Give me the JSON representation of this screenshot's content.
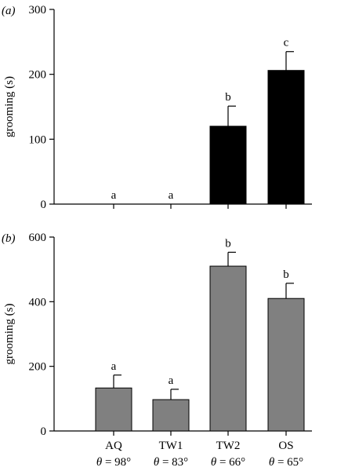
{
  "chart_data": [
    {
      "type": "bar",
      "panel_label": "(a)",
      "ylabel": "grooming (s)",
      "ylim": [
        0,
        300
      ],
      "yticks": [
        0,
        100,
        200,
        300
      ],
      "categories": [
        "AQ",
        "TW1",
        "TW2",
        "OS"
      ],
      "values": [
        0,
        0,
        120,
        206
      ],
      "errors": [
        0,
        0,
        31,
        29
      ],
      "significance": [
        "a",
        "a",
        "b",
        "c"
      ],
      "bar_color": "#000000",
      "show_category_labels": false
    },
    {
      "type": "bar",
      "panel_label": "(b)",
      "ylabel": "grooming (s)",
      "ylim": [
        0,
        600
      ],
      "yticks": [
        0,
        200,
        400,
        600
      ],
      "categories": [
        "AQ",
        "TW1",
        "TW2",
        "OS"
      ],
      "theta_labels": [
        "98°",
        "83°",
        "66°",
        "65°"
      ],
      "values": [
        133,
        97,
        510,
        410
      ],
      "errors": [
        40,
        32,
        43,
        47
      ],
      "significance": [
        "a",
        "a",
        "b",
        "b"
      ],
      "bar_color": "#808080",
      "show_category_labels": true
    }
  ],
  "theta_symbol": "θ",
  "theta_equals": " = "
}
